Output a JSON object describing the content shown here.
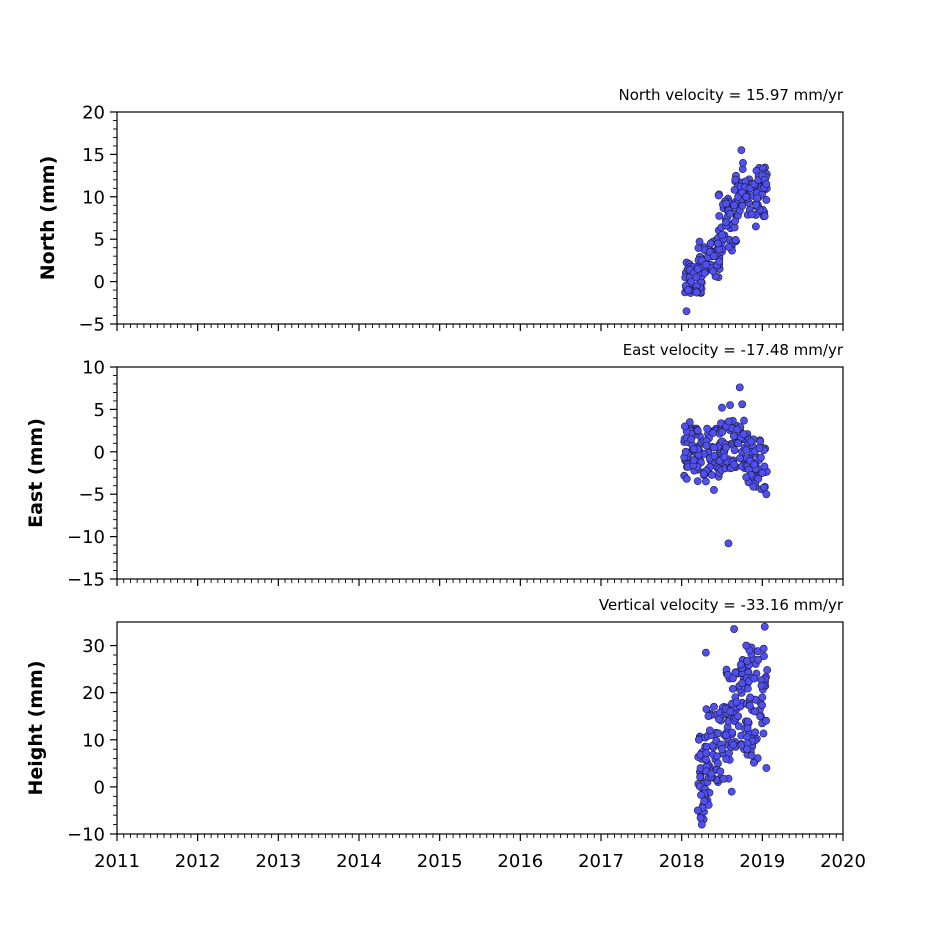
{
  "chart_data": [
    {
      "type": "scatter",
      "title": "North velocity = 15.97 mm/yr",
      "xlabel": "",
      "ylabel": "North (mm)",
      "xlim": [
        2011,
        2020
      ],
      "ylim": [
        -5,
        20
      ],
      "xticks": [
        2011,
        2012,
        2013,
        2014,
        2015,
        2016,
        2017,
        2018,
        2019,
        2020
      ],
      "yticks": [
        -5,
        0,
        5,
        10,
        15,
        20
      ],
      "ytick_labels": [
        "−5",
        "0",
        "5",
        "10",
        "15",
        "20"
      ],
      "show_xtick_labels": false,
      "marker_color": "#5050f0",
      "marker_edge": "#1a1a3a",
      "x": [
        2018.05,
        2018.08,
        2018.1,
        2018.12,
        2018.15,
        2018.18,
        2018.2,
        2018.25,
        2018.3,
        2018.35,
        2018.4,
        2018.45,
        2018.5,
        2018.55,
        2018.6,
        2018.65,
        2018.7,
        2018.75,
        2018.8,
        2018.85,
        2018.9,
        2018.95,
        2019.0,
        2019.03,
        2019.05,
        2018.74,
        2018.76,
        2018.06,
        2018.92
      ],
      "y": [
        -0.5,
        -1.0,
        0.5,
        0.0,
        1.0,
        0.5,
        1.5,
        2.5,
        2.0,
        3.5,
        3.0,
        4.5,
        5.5,
        7.0,
        8.0,
        9.0,
        10.0,
        10.5,
        10.0,
        11.0,
        11.5,
        12.0,
        12.5,
        12.0,
        11.5,
        15.5,
        14.0,
        -3.5,
        6.5
      ],
      "cloud": [
        {
          "x0": 2018.04,
          "x1": 2018.25,
          "y0": -1.5,
          "y1": 3.0,
          "n": 55
        },
        {
          "x0": 2018.2,
          "x1": 2018.5,
          "y0": 0.5,
          "y1": 5.0,
          "n": 45
        },
        {
          "x0": 2018.45,
          "x1": 2018.7,
          "y0": 3.5,
          "y1": 10.5,
          "n": 45
        },
        {
          "x0": 2018.65,
          "x1": 2019.06,
          "y0": 7.5,
          "y1": 13.5,
          "n": 75
        }
      ]
    },
    {
      "type": "scatter",
      "title": "East velocity = -17.48 mm/yr",
      "xlabel": "",
      "ylabel": "East (mm)",
      "xlim": [
        2011,
        2020
      ],
      "ylim": [
        -15,
        10
      ],
      "xticks": [
        2011,
        2012,
        2013,
        2014,
        2015,
        2016,
        2017,
        2018,
        2019,
        2020
      ],
      "yticks": [
        -15,
        -10,
        -5,
        0,
        5,
        10
      ],
      "ytick_labels": [
        "−15",
        "−10",
        "−5",
        "0",
        "5",
        "10"
      ],
      "show_xtick_labels": false,
      "marker_color": "#5050f0",
      "marker_edge": "#1a1a3a",
      "x": [
        2018.05,
        2018.1,
        2018.15,
        2018.2,
        2018.3,
        2018.4,
        2018.5,
        2018.55,
        2018.6,
        2018.65,
        2018.7,
        2018.72,
        2018.75,
        2018.8,
        2018.9,
        2019.0,
        2019.05,
        2018.58,
        2018.4,
        2018.04
      ],
      "y": [
        0.0,
        3.5,
        -1.0,
        2.5,
        -3.5,
        0.5,
        5.2,
        0.5,
        5.5,
        -1.5,
        1.0,
        7.6,
        5.6,
        -3.0,
        -1.5,
        -2.5,
        -5.0,
        -10.8,
        -4.5,
        3.0
      ],
      "cloud": [
        {
          "x0": 2018.03,
          "x1": 2018.5,
          "y0": -3.5,
          "y1": 3.0,
          "n": 110
        },
        {
          "x0": 2018.45,
          "x1": 2018.85,
          "y0": -2.0,
          "y1": 4.0,
          "n": 70
        },
        {
          "x0": 2018.8,
          "x1": 2019.06,
          "y0": -4.5,
          "y1": 1.5,
          "n": 45
        }
      ]
    },
    {
      "type": "scatter",
      "title": "Vertical velocity = -33.16 mm/yr",
      "xlabel": "",
      "ylabel": "Height (mm)",
      "xlim": [
        2011,
        2020
      ],
      "ylim": [
        -10,
        35
      ],
      "xticks": [
        2011,
        2012,
        2013,
        2014,
        2015,
        2016,
        2017,
        2018,
        2019,
        2020
      ],
      "xtick_labels": [
        "2011",
        "2012",
        "2013",
        "2014",
        "2015",
        "2016",
        "2017",
        "2018",
        "2019",
        "2020"
      ],
      "yticks": [
        -10,
        0,
        10,
        20,
        30
      ],
      "ytick_labels": [
        "−10",
        "0",
        "10",
        "20",
        "30"
      ],
      "show_xtick_labels": true,
      "marker_color": "#5050f0",
      "marker_edge": "#1a1a3a",
      "x": [
        2018.2,
        2018.25,
        2018.28,
        2018.3,
        2018.35,
        2018.4,
        2018.45,
        2018.5,
        2018.55,
        2018.6,
        2018.65,
        2018.68,
        2018.7,
        2018.75,
        2018.8,
        2018.85,
        2018.9,
        2018.95,
        2019.0,
        2019.03,
        2019.05,
        2018.62
      ],
      "y": [
        -5.0,
        -8.0,
        -3.0,
        28.5,
        12.0,
        17.0,
        5.0,
        8.0,
        11.0,
        16.0,
        33.5,
        18.0,
        15.0,
        22.0,
        30.0,
        19.0,
        23.0,
        27.0,
        19.0,
        34.0,
        4.0,
        -1.0
      ],
      "cloud": [
        {
          "x0": 2018.2,
          "x1": 2018.35,
          "y0": -7.5,
          "y1": 11.0,
          "n": 45
        },
        {
          "x0": 2018.3,
          "x1": 2018.6,
          "y0": 1.0,
          "y1": 17.0,
          "n": 60
        },
        {
          "x0": 2018.55,
          "x1": 2018.85,
          "y0": 8.0,
          "y1": 27.0,
          "n": 60
        },
        {
          "x0": 2018.8,
          "x1": 2019.06,
          "y0": 5.0,
          "y1": 30.0,
          "n": 55
        }
      ]
    }
  ]
}
